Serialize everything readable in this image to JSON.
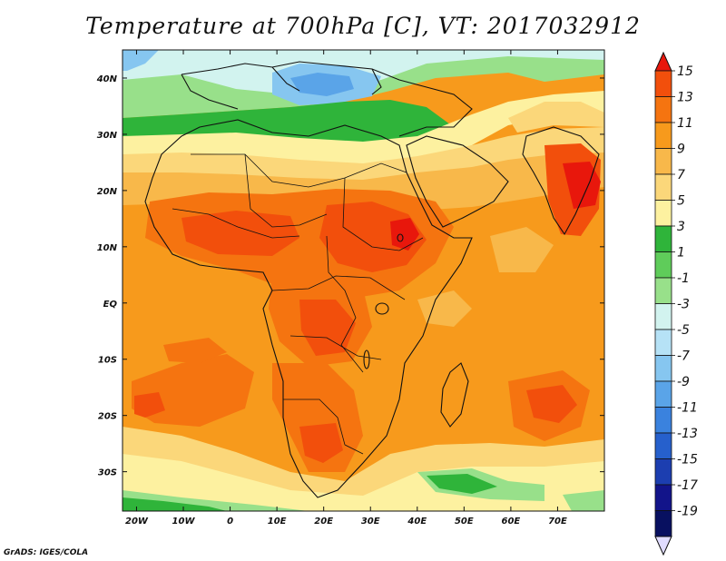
{
  "title": "Temperature at 700hPa [C], VT: 2017032912",
  "credit": "GrADS: IGES/COLA",
  "map": {
    "lon_labels": [
      "20W",
      "10W",
      "0",
      "10E",
      "20E",
      "30E",
      "40E",
      "50E",
      "60E",
      "70E"
    ],
    "lat_labels": [
      "40N",
      "30N",
      "20N",
      "10N",
      "EQ",
      "10S",
      "20S",
      "30S"
    ]
  },
  "colorbar": {
    "labels": [
      "15",
      "13",
      "11",
      "9",
      "7",
      "5",
      "3",
      "1",
      "-1",
      "-3",
      "-5",
      "-7",
      "-9",
      "-11",
      "-13",
      "-15",
      "-17",
      "-19"
    ],
    "colors": [
      "#e8170c",
      "#f24f0c",
      "#f57410",
      "#f79a1c",
      "#f8b84a",
      "#fbd77a",
      "#fdf1a0",
      "#2fb43a",
      "#5fcc5a",
      "#98e08a",
      "#d2f3ef",
      "#b6e2f6",
      "#86c6f0",
      "#5aa4e8",
      "#3a82de",
      "#2660cc",
      "#1c3eb0",
      "#12148a",
      "#081060",
      "#e0dcff"
    ]
  }
}
